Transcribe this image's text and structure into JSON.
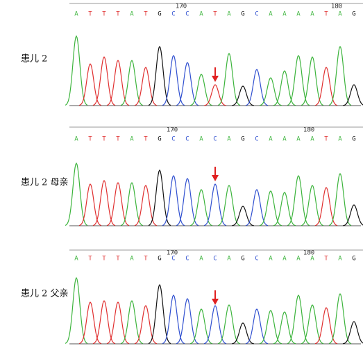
{
  "panels": [
    {
      "label": "患儿 2",
      "bases": [
        "A",
        "T",
        "T",
        "T",
        "A",
        "T",
        "G",
        "C",
        "C",
        "A",
        "T",
        "A",
        "G",
        "C",
        "A",
        "A",
        "A",
        "A",
        "T",
        "A",
        "G"
      ],
      "ticks": [
        "170",
        "180"
      ]
    },
    {
      "label": "患儿 2 母亲",
      "bases": [
        "A",
        "T",
        "T",
        "T",
        "A",
        "T",
        "G",
        "C",
        "C",
        "A",
        "C",
        "A",
        "G",
        "C",
        "A",
        "A",
        "A",
        "A",
        "T",
        "A",
        "G"
      ],
      "ticks": [
        "170",
        "180"
      ]
    },
    {
      "label": "患儿 2 父亲",
      "bases": [
        "A",
        "T",
        "T",
        "T",
        "A",
        "T",
        "G",
        "C",
        "C",
        "A",
        "C",
        "A",
        "G",
        "C",
        "A",
        "A",
        "A",
        "A",
        "T",
        "A",
        "G"
      ],
      "ticks": [
        "170",
        "180"
      ]
    }
  ]
}
